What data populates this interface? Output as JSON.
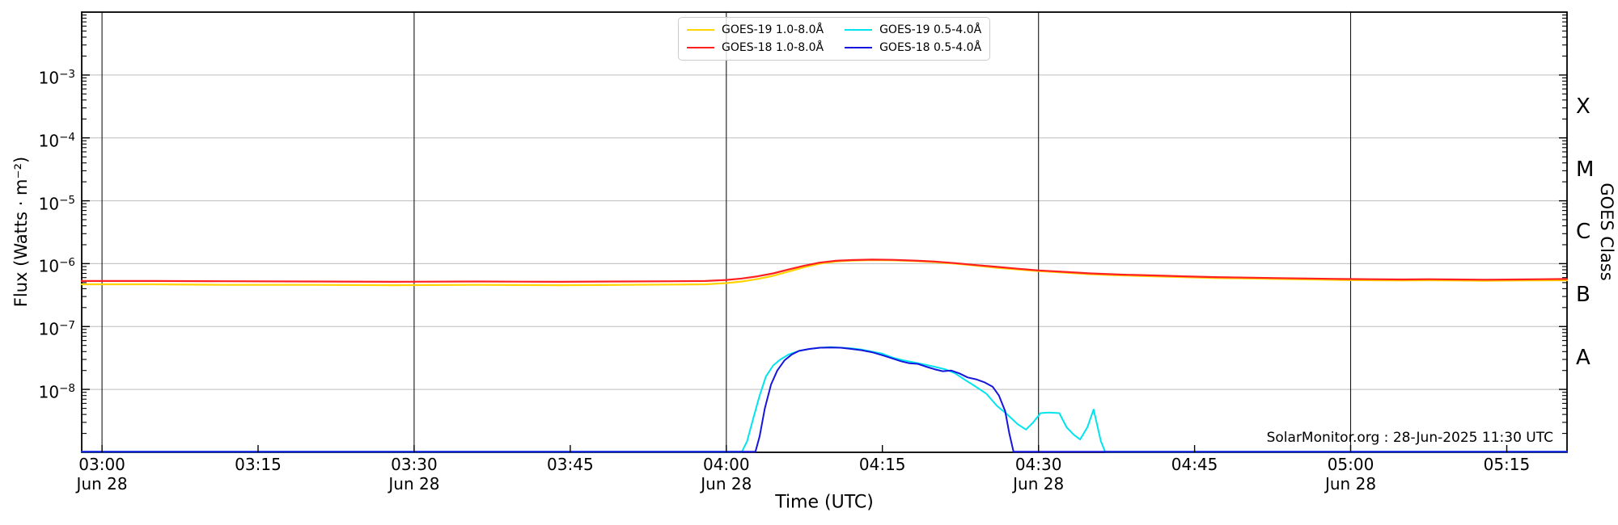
{
  "figure": {
    "annotation": "SolarMonitor.org : 28-Jun-2025 11:30 UTC"
  },
  "axes": {
    "x_label": "Time (UTC)",
    "y_label": "Flux (Watts · m⁻²)",
    "right_label": "GOES Class"
  },
  "chart_data": {
    "type": "line",
    "title": "",
    "xlabel": "Time (UTC)",
    "ylabel": "Flux (Watts · m⁻²)",
    "right_axis_label": "GOES Class",
    "x_axis": {
      "start": "02:58 UTC Jun 28",
      "end": "05:21 UTC Jun 28",
      "unit": "minutes after 03:00 UTC"
    },
    "ylim": [
      1e-09,
      0.01
    ],
    "grid": true,
    "legend_position": "top-center",
    "x_ticks": [
      {
        "m": 0,
        "label": "03:00",
        "date": "Jun 28"
      },
      {
        "m": 15,
        "label": "03:15"
      },
      {
        "m": 30,
        "label": "03:30",
        "date": "Jun 28"
      },
      {
        "m": 45,
        "label": "03:45"
      },
      {
        "m": 60,
        "label": "04:00",
        "date": "Jun 28"
      },
      {
        "m": 75,
        "label": "04:15"
      },
      {
        "m": 90,
        "label": "04:30",
        "date": "Jun 28"
      },
      {
        "m": 105,
        "label": "04:45"
      },
      {
        "m": 120,
        "label": "05:00",
        "date": "Jun 28"
      },
      {
        "m": 135,
        "label": "05:15"
      }
    ],
    "grid_vertical_minutes": [
      0,
      30,
      60,
      90,
      120
    ],
    "y_tick_exponents": [
      -3,
      -4,
      -5,
      -6,
      -7,
      -8
    ],
    "goes_classes": [
      {
        "label": "X",
        "exp": -3.5
      },
      {
        "label": "M",
        "exp": -4.5
      },
      {
        "label": "C",
        "exp": -5.5
      },
      {
        "label": "B",
        "exp": -6.5
      },
      {
        "label": "A",
        "exp": -7.5
      }
    ],
    "colors": {
      "goes19_long": "#ffd400",
      "goes18_long": "#ff2020",
      "goes19_short": "#00e4ee",
      "goes18_short": "#1515dd",
      "grid_h": "#bdbdbd",
      "grid_v": "#161616"
    },
    "series": [
      {
        "name": "GOES-19 1.0-8.0Å",
        "color": "#ffd400",
        "points": [
          [
            -1.95,
            4.7e-07
          ],
          [
            5,
            4.7e-07
          ],
          [
            12,
            4.6e-07
          ],
          [
            20,
            4.6e-07
          ],
          [
            28,
            4.55e-07
          ],
          [
            36,
            4.6e-07
          ],
          [
            44,
            4.55e-07
          ],
          [
            50,
            4.6e-07
          ],
          [
            55,
            4.65e-07
          ],
          [
            58,
            4.7e-07
          ],
          [
            60,
            4.9e-07
          ],
          [
            61.5,
            5.2e-07
          ],
          [
            63,
            5.7e-07
          ],
          [
            64.5,
            6.4e-07
          ],
          [
            66,
            7.5e-07
          ],
          [
            67.5,
            8.8e-07
          ],
          [
            69,
            1e-06
          ],
          [
            70.5,
            1.08e-06
          ],
          [
            72,
            1.12e-06
          ],
          [
            74,
            1.14e-06
          ],
          [
            76,
            1.13e-06
          ],
          [
            78,
            1.1e-06
          ],
          [
            80,
            1.06e-06
          ],
          [
            82,
            1e-06
          ],
          [
            84,
            9.3e-07
          ],
          [
            86,
            8.6e-07
          ],
          [
            88,
            8.1e-07
          ],
          [
            90,
            7.6e-07
          ],
          [
            92.5,
            7.2e-07
          ],
          [
            95,
            6.8e-07
          ],
          [
            98,
            6.5e-07
          ],
          [
            101,
            6.3e-07
          ],
          [
            104,
            6.1e-07
          ],
          [
            107,
            5.9e-07
          ],
          [
            110,
            5.8e-07
          ],
          [
            113,
            5.7e-07
          ],
          [
            116,
            5.6e-07
          ],
          [
            119,
            5.5e-07
          ],
          [
            122,
            5.45e-07
          ],
          [
            125,
            5.4e-07
          ],
          [
            127.5,
            5.45e-07
          ],
          [
            130,
            5.4e-07
          ],
          [
            133,
            5.35e-07
          ],
          [
            136,
            5.4e-07
          ],
          [
            140.8,
            5.45e-07
          ]
        ]
      },
      {
        "name": "GOES-18 1.0-8.0Å",
        "color": "#ff2020",
        "points": [
          [
            -1.95,
            5.3e-07
          ],
          [
            5,
            5.3e-07
          ],
          [
            12,
            5.25e-07
          ],
          [
            20,
            5.2e-07
          ],
          [
            28,
            5.15e-07
          ],
          [
            36,
            5.2e-07
          ],
          [
            44,
            5.15e-07
          ],
          [
            50,
            5.2e-07
          ],
          [
            55,
            5.25e-07
          ],
          [
            58,
            5.3e-07
          ],
          [
            60,
            5.5e-07
          ],
          [
            61.5,
            5.8e-07
          ],
          [
            63,
            6.3e-07
          ],
          [
            64.5,
            7e-07
          ],
          [
            66,
            8.1e-07
          ],
          [
            67.5,
            9.3e-07
          ],
          [
            69,
            1.04e-06
          ],
          [
            70.5,
            1.11e-06
          ],
          [
            72,
            1.14e-06
          ],
          [
            74,
            1.16e-06
          ],
          [
            76,
            1.15e-06
          ],
          [
            78,
            1.12e-06
          ],
          [
            80,
            1.08e-06
          ],
          [
            82,
            1.02e-06
          ],
          [
            84,
            9.5e-07
          ],
          [
            86,
            8.9e-07
          ],
          [
            88,
            8.3e-07
          ],
          [
            90,
            7.8e-07
          ],
          [
            92.5,
            7.4e-07
          ],
          [
            95,
            7e-07
          ],
          [
            98,
            6.7e-07
          ],
          [
            101,
            6.5e-07
          ],
          [
            104,
            6.3e-07
          ],
          [
            107,
            6.1e-07
          ],
          [
            110,
            6e-07
          ],
          [
            113,
            5.9e-07
          ],
          [
            116,
            5.8e-07
          ],
          [
            119,
            5.7e-07
          ],
          [
            122,
            5.65e-07
          ],
          [
            125,
            5.6e-07
          ],
          [
            127.5,
            5.65e-07
          ],
          [
            130,
            5.6e-07
          ],
          [
            133,
            5.55e-07
          ],
          [
            136,
            5.6e-07
          ],
          [
            140.8,
            5.7e-07
          ]
        ]
      },
      {
        "name": "GOES-19 0.5-4.0Å",
        "color": "#00e4ee",
        "points": [
          [
            -1.95,
            9.2e-10
          ],
          [
            61.5,
            9.2e-10
          ],
          [
            62,
            1.5e-09
          ],
          [
            62.6,
            3.5e-09
          ],
          [
            63.2,
            8e-09
          ],
          [
            63.8,
            1.6e-08
          ],
          [
            64.5,
            2.4e-08
          ],
          [
            65.2,
            3e-08
          ],
          [
            66,
            3.6e-08
          ],
          [
            67,
            4.1e-08
          ],
          [
            68,
            4.4e-08
          ],
          [
            69,
            4.6e-08
          ],
          [
            70,
            4.7e-08
          ],
          [
            71,
            4.6e-08
          ],
          [
            72,
            4.5e-08
          ],
          [
            73,
            4.3e-08
          ],
          [
            74,
            4e-08
          ],
          [
            75,
            3.7e-08
          ],
          [
            76,
            3.2e-08
          ],
          [
            77,
            2.9e-08
          ],
          [
            78,
            2.7e-08
          ],
          [
            79,
            2.5e-08
          ],
          [
            80,
            2.3e-08
          ],
          [
            81,
            2.1e-08
          ],
          [
            82,
            1.8e-08
          ],
          [
            83,
            1.4e-08
          ],
          [
            84,
            1.1e-08
          ],
          [
            85,
            8.5e-09
          ],
          [
            86,
            5.5e-09
          ],
          [
            87,
            4e-09
          ],
          [
            88,
            2.8e-09
          ],
          [
            88.8,
            2.3e-09
          ],
          [
            89.5,
            3e-09
          ],
          [
            90.2,
            4.2e-09
          ],
          [
            91,
            4.3e-09
          ],
          [
            92,
            4.2e-09
          ],
          [
            92.7,
            2.5e-09
          ],
          [
            93.4,
            1.9e-09
          ],
          [
            94,
            1.6e-09
          ],
          [
            94.7,
            2.5e-09
          ],
          [
            95.3,
            4.8e-09
          ],
          [
            96,
            1.5e-09
          ],
          [
            96.4,
            9.2e-10
          ],
          [
            140.8,
            9.2e-10
          ]
        ]
      },
      {
        "name": "GOES-18 0.5-4.0Å",
        "color": "#1515dd",
        "points": [
          [
            -1.95,
            9.2e-10
          ],
          [
            62.8,
            9.2e-10
          ],
          [
            63.2,
            1.8e-09
          ],
          [
            63.7,
            5e-09
          ],
          [
            64.3,
            1.2e-08
          ],
          [
            64.9,
            2e-08
          ],
          [
            65.6,
            2.9e-08
          ],
          [
            66.3,
            3.6e-08
          ],
          [
            67,
            4.1e-08
          ],
          [
            68,
            4.4e-08
          ],
          [
            69,
            4.6e-08
          ],
          [
            70,
            4.65e-08
          ],
          [
            71,
            4.6e-08
          ],
          [
            72,
            4.4e-08
          ],
          [
            73,
            4.2e-08
          ],
          [
            74,
            3.9e-08
          ],
          [
            75,
            3.5e-08
          ],
          [
            76,
            3.1e-08
          ],
          [
            76.8,
            2.8e-08
          ],
          [
            77.6,
            2.6e-08
          ],
          [
            78.4,
            2.55e-08
          ],
          [
            79.2,
            2.3e-08
          ],
          [
            80,
            2.1e-08
          ],
          [
            80.8,
            1.95e-08
          ],
          [
            81.6,
            2e-08
          ],
          [
            82.4,
            1.8e-08
          ],
          [
            83.2,
            1.55e-08
          ],
          [
            84,
            1.45e-08
          ],
          [
            84.8,
            1.3e-08
          ],
          [
            85.6,
            1.1e-08
          ],
          [
            86.2,
            8e-09
          ],
          [
            86.8,
            4.5e-09
          ],
          [
            87.2,
            2e-09
          ],
          [
            87.6,
            9.2e-10
          ],
          [
            140.8,
            9.2e-10
          ]
        ]
      }
    ]
  }
}
